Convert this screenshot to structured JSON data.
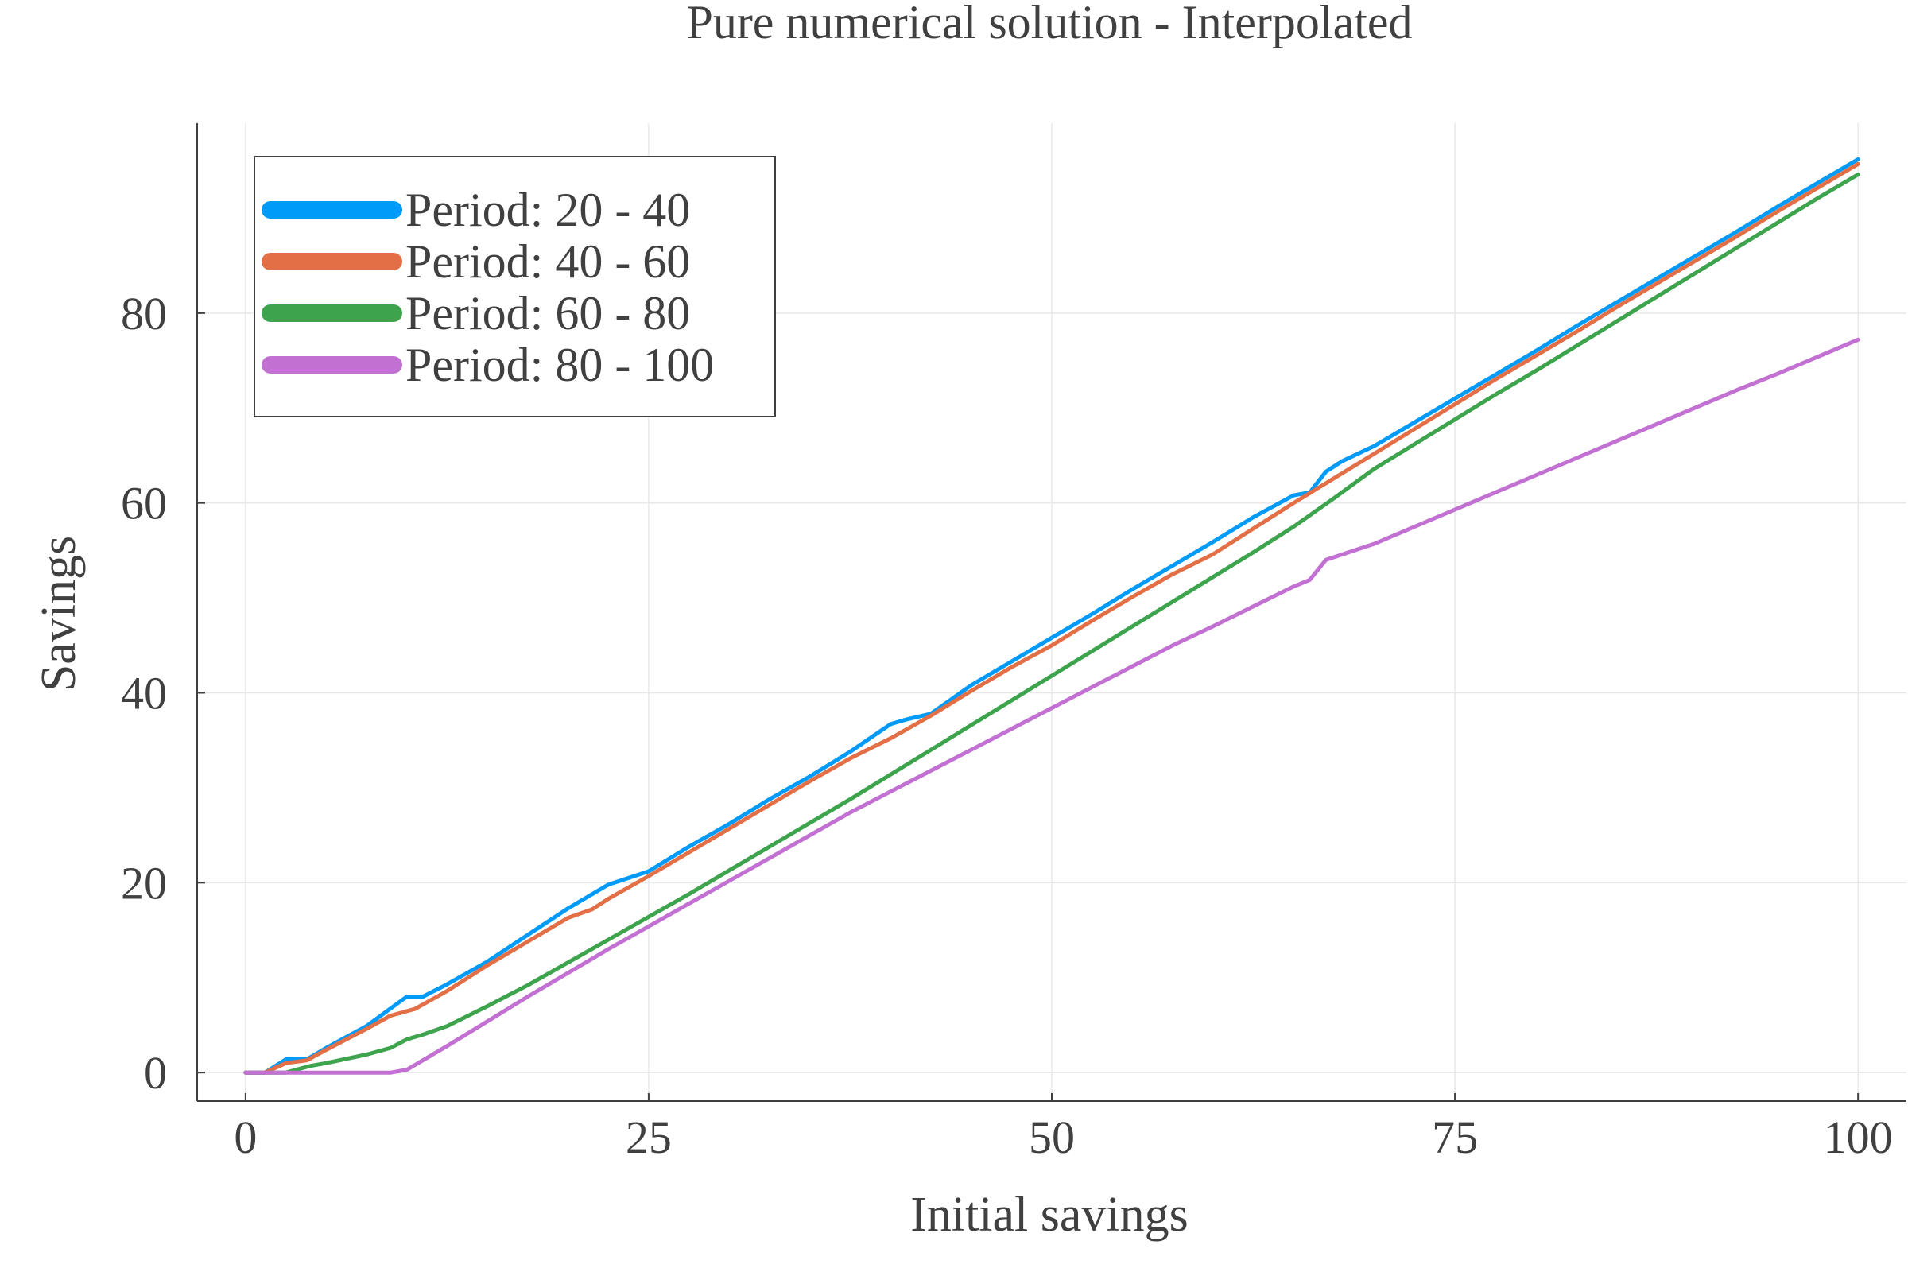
{
  "chart_data": {
    "type": "line",
    "title": "Pure numerical solution - Interpolated",
    "xlabel": "Initial savings",
    "ylabel": "Savings",
    "xlim": [
      -3,
      103
    ],
    "ylim": [
      -3,
      100
    ],
    "xticks": [
      0,
      25,
      50,
      75,
      100
    ],
    "yticks": [
      0,
      20,
      40,
      60,
      80
    ],
    "xtick_labels": [
      "0",
      "25",
      "50",
      "75",
      "100"
    ],
    "ytick_labels": [
      "0",
      "20",
      "40",
      "60",
      "80"
    ],
    "grid": true,
    "legend_position": "top-left",
    "series": [
      {
        "name": "Period: 20 - 40",
        "color": "#009af9",
        "points": [
          [
            0,
            0
          ],
          [
            1.2,
            0
          ],
          [
            2.5,
            1.4
          ],
          [
            3.8,
            1.4
          ],
          [
            5,
            2.6
          ],
          [
            7.5,
            4.9
          ],
          [
            10,
            8
          ],
          [
            11,
            8
          ],
          [
            12.5,
            9.3
          ],
          [
            15,
            11.7
          ],
          [
            17.5,
            14.5
          ],
          [
            20,
            17.3
          ],
          [
            22.5,
            19.8
          ],
          [
            25,
            21.2
          ],
          [
            27.5,
            23.8
          ],
          [
            30,
            26.2
          ],
          [
            32.5,
            28.8
          ],
          [
            35,
            31.2
          ],
          [
            37.5,
            33.8
          ],
          [
            40,
            36.7
          ],
          [
            41,
            37.2
          ],
          [
            42.5,
            37.8
          ],
          [
            45,
            40.8
          ],
          [
            47.5,
            43.3
          ],
          [
            50,
            45.8
          ],
          [
            52.5,
            48.3
          ],
          [
            55,
            50.9
          ],
          [
            57.5,
            53.4
          ],
          [
            60,
            55.9
          ],
          [
            62.5,
            58.5
          ],
          [
            65,
            60.8
          ],
          [
            66,
            61.1
          ],
          [
            67,
            63.3
          ],
          [
            68,
            64.4
          ],
          [
            70,
            66
          ],
          [
            72.5,
            68.5
          ],
          [
            75,
            71
          ],
          [
            77.5,
            73.5
          ],
          [
            80,
            76
          ],
          [
            82.5,
            78.6
          ],
          [
            85,
            81.1
          ],
          [
            87.5,
            83.6
          ],
          [
            90,
            86.1
          ],
          [
            92.5,
            88.6
          ],
          [
            95,
            91.2
          ],
          [
            97.5,
            93.7
          ],
          [
            100,
            96.2
          ]
        ]
      },
      {
        "name": "Period: 40 - 60",
        "color": "#e26f46",
        "points": [
          [
            0,
            0
          ],
          [
            1.2,
            0
          ],
          [
            2.5,
            1
          ],
          [
            3.8,
            1.3
          ],
          [
            5,
            2.4
          ],
          [
            7.5,
            4.6
          ],
          [
            9,
            6
          ],
          [
            10.5,
            6.7
          ],
          [
            12.5,
            8.6
          ],
          [
            15,
            11.3
          ],
          [
            17.5,
            13.8
          ],
          [
            20,
            16.3
          ],
          [
            21.5,
            17.2
          ],
          [
            22.5,
            18.3
          ],
          [
            25,
            20.7
          ],
          [
            27.5,
            23.2
          ],
          [
            30,
            25.7
          ],
          [
            32.5,
            28.2
          ],
          [
            35,
            30.7
          ],
          [
            37.5,
            33.1
          ],
          [
            40,
            35.2
          ],
          [
            42.5,
            37.6
          ],
          [
            45,
            40.2
          ],
          [
            47.5,
            42.7
          ],
          [
            50,
            45
          ],
          [
            52.5,
            47.6
          ],
          [
            55,
            50.1
          ],
          [
            57.5,
            52.5
          ],
          [
            60,
            54.6
          ],
          [
            62.5,
            57.3
          ],
          [
            65,
            60
          ],
          [
            67.5,
            62.6
          ],
          [
            70,
            65.2
          ],
          [
            72.5,
            67.8
          ],
          [
            75,
            70.4
          ],
          [
            77.5,
            73
          ],
          [
            80,
            75.5
          ],
          [
            82.5,
            78
          ],
          [
            85,
            80.6
          ],
          [
            87.5,
            83.1
          ],
          [
            90,
            85.6
          ],
          [
            92.5,
            88.1
          ],
          [
            95,
            90.7
          ],
          [
            97.5,
            93.2
          ],
          [
            100,
            95.7
          ]
        ]
      },
      {
        "name": "Period: 60 - 80",
        "color": "#3da44d",
        "points": [
          [
            0,
            0
          ],
          [
            2.5,
            0
          ],
          [
            4,
            0.7
          ],
          [
            5,
            1
          ],
          [
            7.5,
            1.9
          ],
          [
            9,
            2.6
          ],
          [
            10,
            3.5
          ],
          [
            11,
            4
          ],
          [
            12.5,
            4.9
          ],
          [
            15,
            7
          ],
          [
            17.5,
            9.2
          ],
          [
            20,
            11.6
          ],
          [
            22.5,
            14
          ],
          [
            25,
            16.4
          ],
          [
            27.5,
            18.8
          ],
          [
            30,
            21.3
          ],
          [
            32.5,
            23.8
          ],
          [
            35,
            26.3
          ],
          [
            37.5,
            28.8
          ],
          [
            40,
            31.4
          ],
          [
            42.5,
            34
          ],
          [
            45,
            36.6
          ],
          [
            47.5,
            39.2
          ],
          [
            50,
            41.8
          ],
          [
            52.5,
            44.4
          ],
          [
            55,
            47
          ],
          [
            57.5,
            49.6
          ],
          [
            60,
            52.2
          ],
          [
            62.5,
            54.8
          ],
          [
            65,
            57.5
          ],
          [
            67.5,
            60.5
          ],
          [
            70,
            63.6
          ],
          [
            72.5,
            66.2
          ],
          [
            75,
            68.8
          ],
          [
            77.5,
            71.4
          ],
          [
            80,
            73.9
          ],
          [
            82.5,
            76.5
          ],
          [
            85,
            79.1
          ],
          [
            87.5,
            81.7
          ],
          [
            90,
            84.3
          ],
          [
            92.5,
            86.9
          ],
          [
            95,
            89.5
          ],
          [
            97.5,
            92.1
          ],
          [
            100,
            94.6
          ]
        ]
      },
      {
        "name": "Period: 80 - 100",
        "color": "#c271d2",
        "points": [
          [
            0,
            0
          ],
          [
            2.5,
            0
          ],
          [
            5,
            0
          ],
          [
            7.5,
            0
          ],
          [
            9,
            0
          ],
          [
            10,
            0.3
          ],
          [
            12.5,
            2.8
          ],
          [
            15,
            5.4
          ],
          [
            17.5,
            8
          ],
          [
            20,
            10.5
          ],
          [
            22.5,
            13
          ],
          [
            25,
            15.4
          ],
          [
            27.5,
            17.8
          ],
          [
            30,
            20.2
          ],
          [
            32.5,
            22.6
          ],
          [
            35,
            25
          ],
          [
            37.5,
            27.4
          ],
          [
            40,
            29.6
          ],
          [
            42.5,
            31.8
          ],
          [
            45,
            34
          ],
          [
            47.5,
            36.2
          ],
          [
            50,
            38.4
          ],
          [
            52.5,
            40.6
          ],
          [
            55,
            42.8
          ],
          [
            57.5,
            45
          ],
          [
            60,
            47
          ],
          [
            62.5,
            49.1
          ],
          [
            65,
            51.2
          ],
          [
            66,
            51.9
          ],
          [
            67,
            54
          ],
          [
            70,
            55.7
          ],
          [
            72.5,
            57.5
          ],
          [
            75,
            59.3
          ],
          [
            77.5,
            61.1
          ],
          [
            80,
            62.9
          ],
          [
            82.5,
            64.7
          ],
          [
            85,
            66.5
          ],
          [
            87.5,
            68.3
          ],
          [
            90,
            70.1
          ],
          [
            92.5,
            71.9
          ],
          [
            95,
            73.6
          ],
          [
            97.5,
            75.4
          ],
          [
            100,
            77.2
          ]
        ]
      }
    ]
  }
}
